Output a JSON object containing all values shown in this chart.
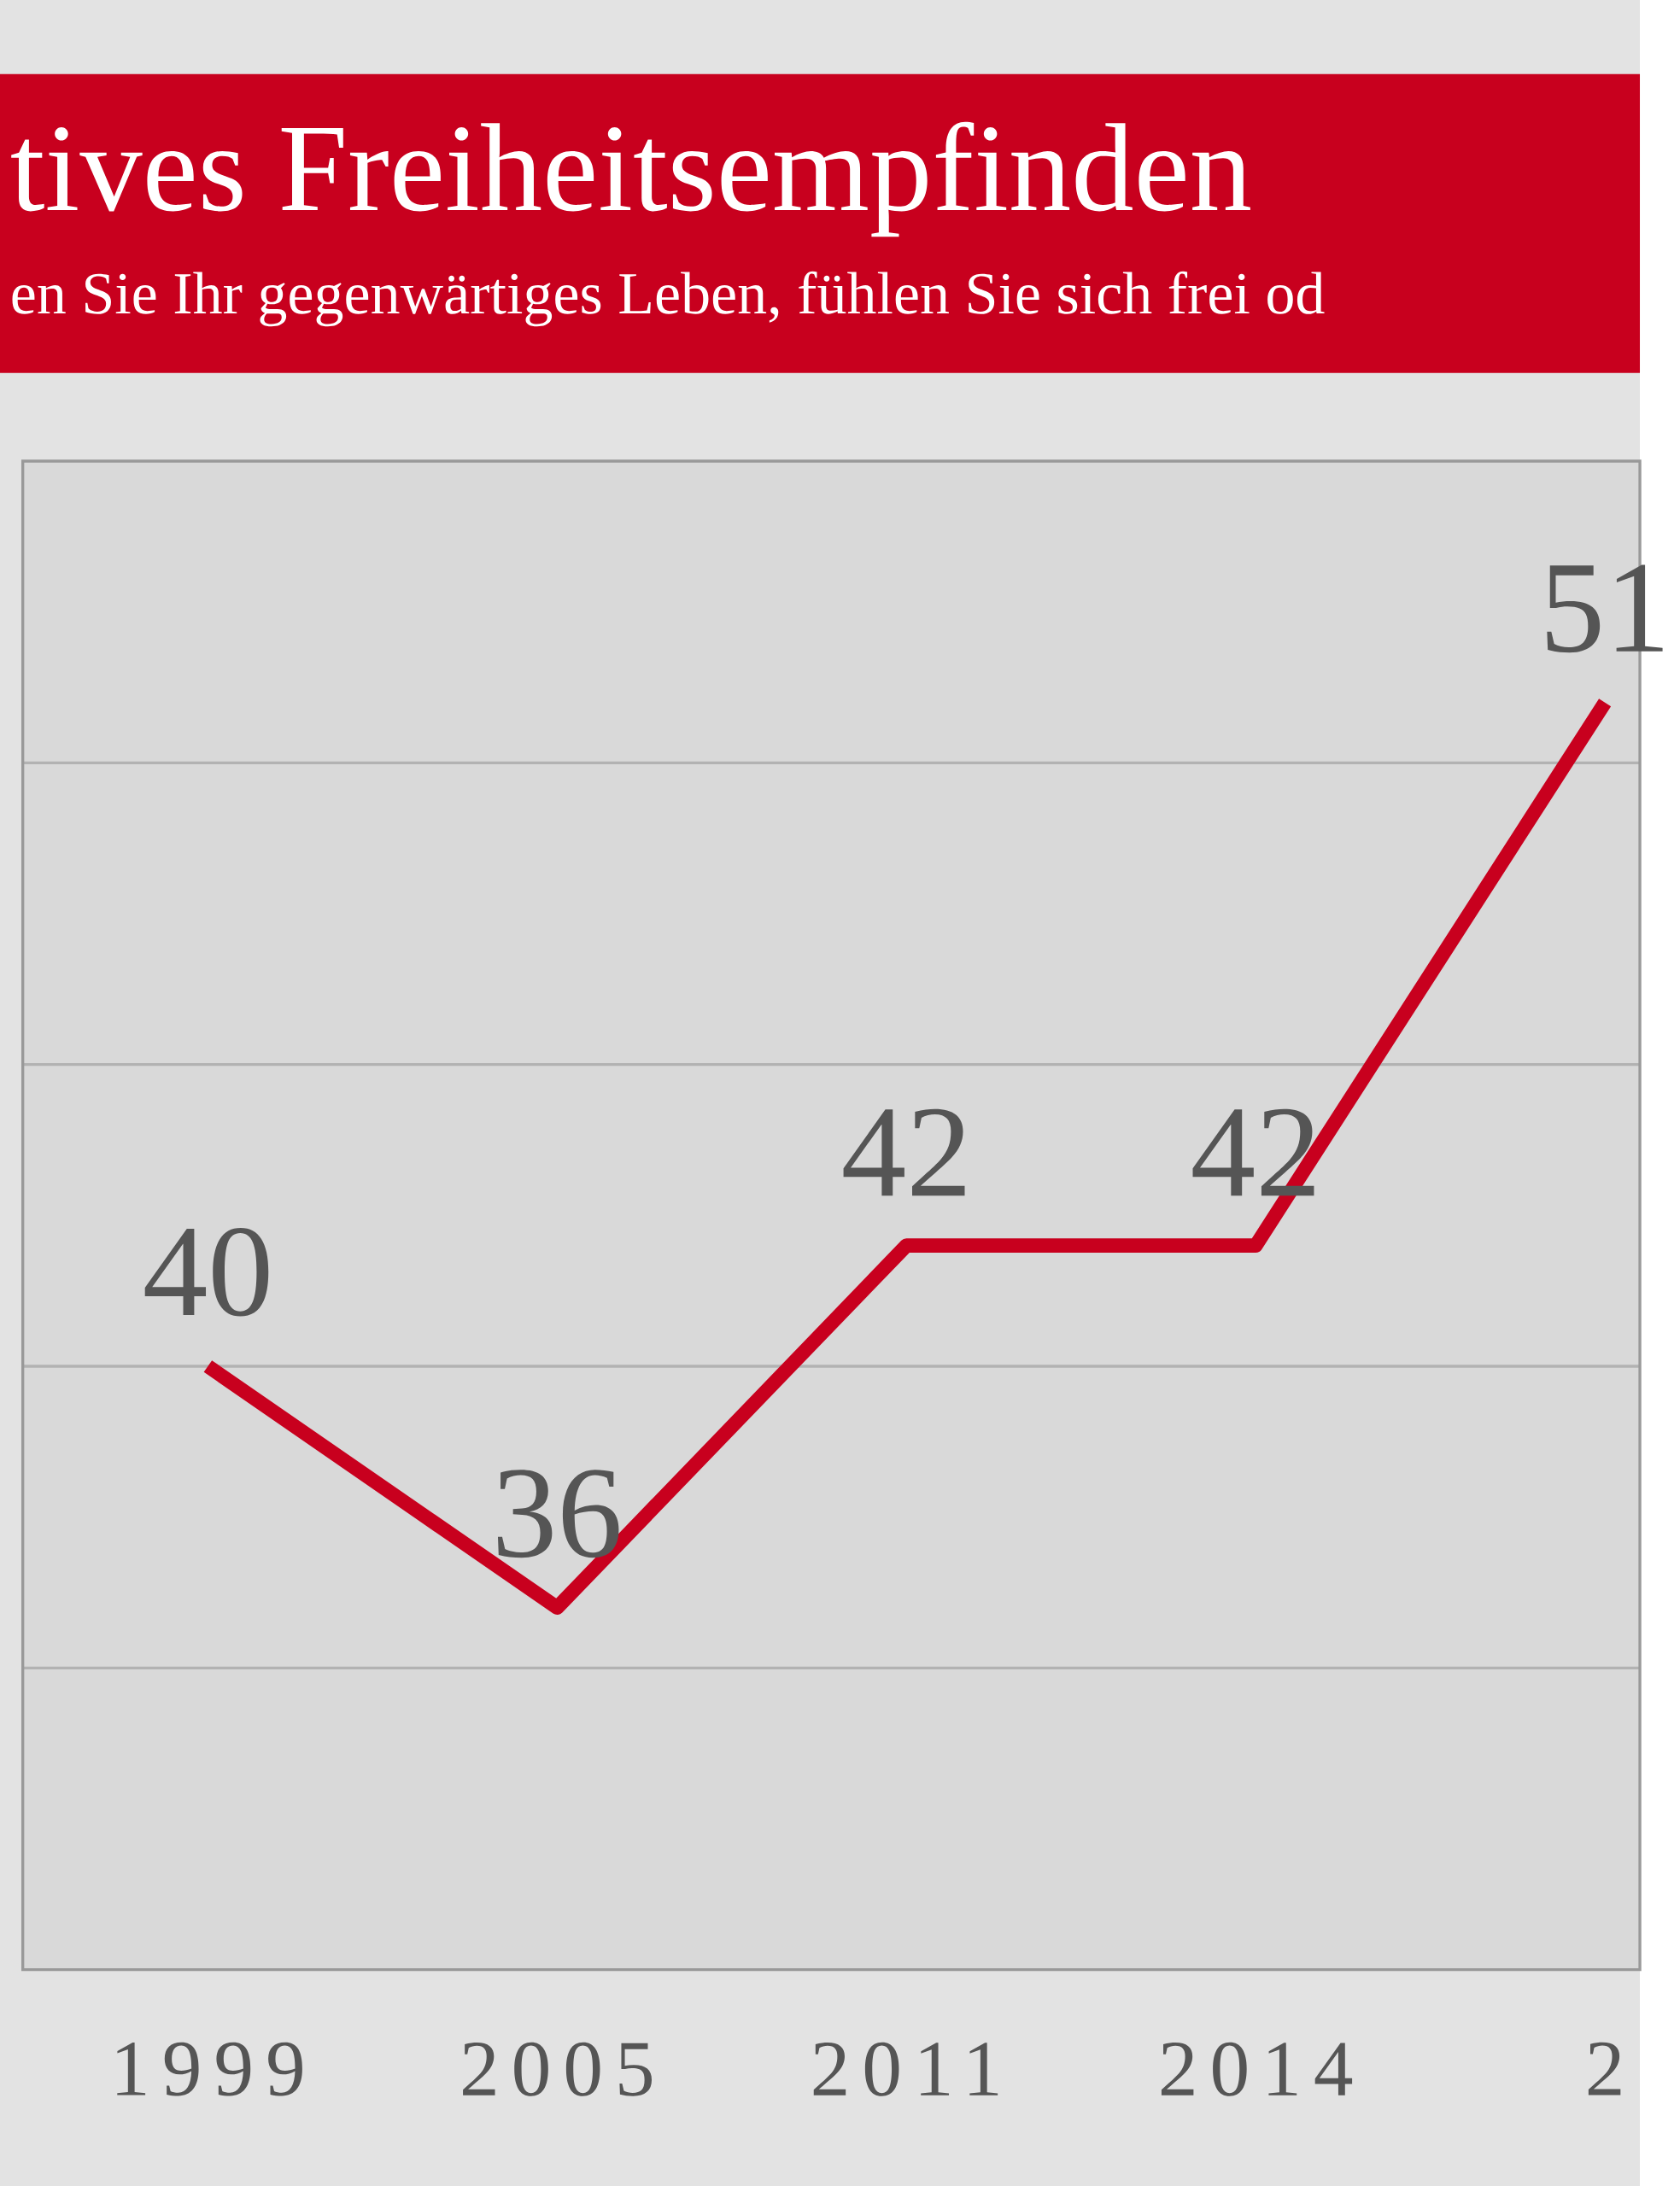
{
  "chart_data": {
    "type": "line",
    "title": "tives Freiheitsempfinden",
    "subtitle": "en Sie Ihr gegenwärtiges Leben, fühlen Sie sich frei od",
    "categories": [
      "1999",
      "2005",
      "2011",
      "2014",
      "2"
    ],
    "series": [
      {
        "color": "#c8001e",
        "values": [
          40,
          36,
          42,
          42,
          51
        ]
      }
    ],
    "ylim": [
      30,
      55
    ],
    "yticks": [
      {
        "value": 35,
        "label": null
      },
      {
        "value": 40,
        "label": null
      },
      {
        "value": 45,
        "label": null
      },
      {
        "value": 50,
        "label": null
      }
    ],
    "grid": "y",
    "tick_labels": "x",
    "data_labels": true,
    "marker": "none",
    "line_style": "solid"
  }
}
